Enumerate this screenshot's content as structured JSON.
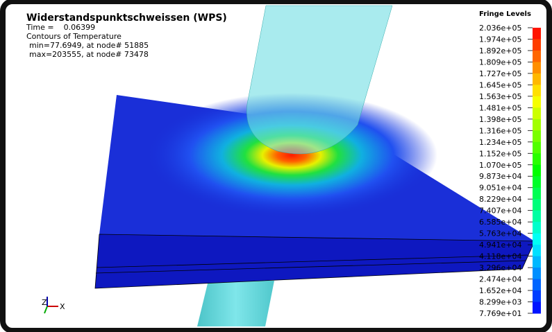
{
  "header": {
    "title": "Widerstandspunktschweissen (WPS)",
    "time": "Time =    0.06399",
    "contours": "Contours of Temperature",
    "min": "min=77.6949, at node# 51885",
    "max": "max=203555, at node# 73478"
  },
  "legend": {
    "title": "Fringe Levels",
    "levels": [
      "2.036e+05",
      "1.974e+05",
      "1.892e+05",
      "1.809e+05",
      "1.727e+05",
      "1.645e+05",
      "1.563e+05",
      "1.481e+05",
      "1.398e+05",
      "1.316e+05",
      "1.234e+05",
      "1.152e+05",
      "1.070e+05",
      "9.873e+04",
      "9.051e+04",
      "8.229e+04",
      "7.407e+04",
      "6.585e+04",
      "5.763e+04",
      "4.941e+04",
      "4.118e+04",
      "3.296e+04",
      "2.474e+04",
      "1.652e+04",
      "8.299e+03",
      "7.769e+01"
    ]
  },
  "axes": {
    "z": "Z",
    "x": "X"
  }
}
